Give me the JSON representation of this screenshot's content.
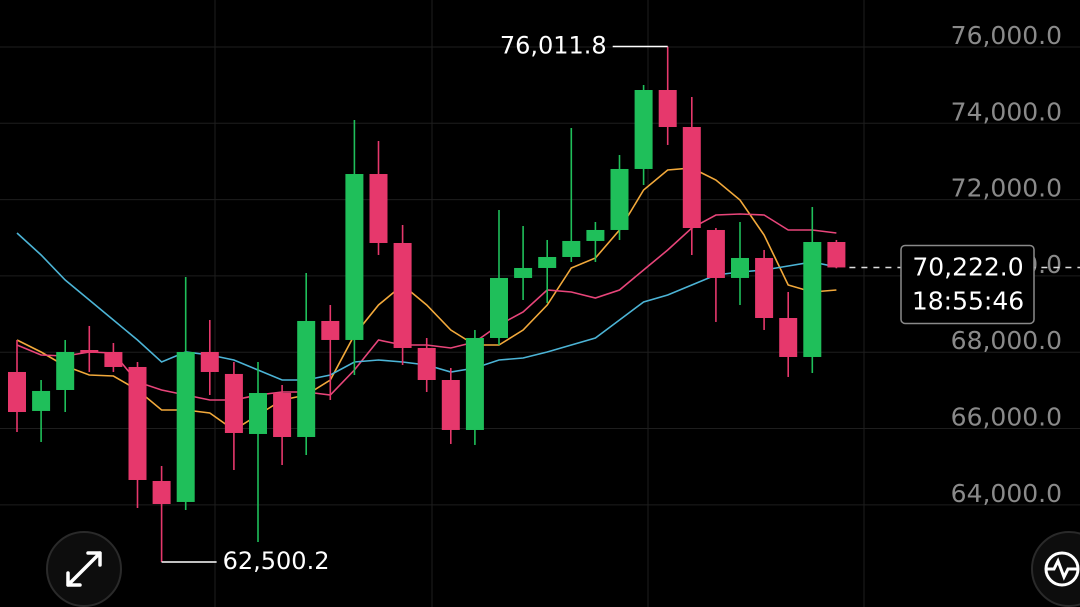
{
  "chart_data": {
    "type": "candlestick",
    "up_color": "#1fbf5a",
    "down_color": "#e6386c",
    "ylim": [
      61322,
      77232
    ],
    "yticks": [
      {
        "value": 64000,
        "label": "64,000.0"
      },
      {
        "value": 66000,
        "label": "66,000.0"
      },
      {
        "value": 68000,
        "label": "68,000.0"
      },
      {
        "value": 70000,
        "label": "70,000.0"
      },
      {
        "value": 72000,
        "label": "72,000.0"
      },
      {
        "value": 74000,
        "label": "74,000.0"
      },
      {
        "value": 76000,
        "label": "76,000.0"
      }
    ],
    "grid": true,
    "candles": [
      {
        "open": 67482,
        "high": 68321,
        "low": 65909,
        "close": 66433
      },
      {
        "open": 66460,
        "high": 67272,
        "low": 65647,
        "close": 66984
      },
      {
        "open": 67010,
        "high": 68321,
        "low": 66433,
        "close": 68006
      },
      {
        "open": 68058,
        "high": 68688,
        "low": 67482,
        "close": 67980
      },
      {
        "open": 68006,
        "high": 68242,
        "low": 67482,
        "close": 67613
      },
      {
        "open": 67613,
        "high": 67744,
        "low": 63917,
        "close": 64651
      },
      {
        "open": 64625,
        "high": 65018,
        "low": 62500.2,
        "close": 64022
      },
      {
        "open": 64075,
        "high": 69972,
        "low": 63865,
        "close": 68006
      },
      {
        "open": 68006,
        "high": 68845,
        "low": 66879,
        "close": 67482
      },
      {
        "open": 67430,
        "high": 67744,
        "low": 64913,
        "close": 65883
      },
      {
        "open": 65857,
        "high": 67744,
        "low": 63026,
        "close": 66931
      },
      {
        "open": 66931,
        "high": 67141,
        "low": 65044,
        "close": 65778
      },
      {
        "open": 65778,
        "high": 70077,
        "low": 65306,
        "close": 68819
      },
      {
        "open": 68819,
        "high": 69238,
        "low": 66748,
        "close": 68321
      },
      {
        "open": 68321,
        "high": 74087,
        "low": 67403,
        "close": 72671
      },
      {
        "open": 72671,
        "high": 73536,
        "low": 70549,
        "close": 70863
      },
      {
        "open": 70863,
        "high": 71335,
        "low": 67665,
        "close": 68111
      },
      {
        "open": 68111,
        "high": 68373,
        "low": 66958,
        "close": 67272
      },
      {
        "open": 67272,
        "high": 67587,
        "low": 65595,
        "close": 65962
      },
      {
        "open": 65962,
        "high": 68583,
        "low": 65569,
        "close": 68373
      },
      {
        "open": 68373,
        "high": 71728,
        "low": 68190,
        "close": 69946
      },
      {
        "open": 69946,
        "high": 71308,
        "low": 69369,
        "close": 70208
      },
      {
        "open": 70208,
        "high": 70942,
        "low": 69290,
        "close": 70496
      },
      {
        "open": 70496,
        "high": 73877,
        "low": 70365,
        "close": 70916
      },
      {
        "open": 70916,
        "high": 71413,
        "low": 70365,
        "close": 71204
      },
      {
        "open": 71204,
        "high": 73169,
        "low": 70942,
        "close": 72803
      },
      {
        "open": 72803,
        "high": 75004,
        "low": 72383,
        "close": 74873
      },
      {
        "open": 74873,
        "high": 76011.8,
        "low": 73432,
        "close": 73903
      },
      {
        "open": 73903,
        "high": 74690,
        "low": 70549,
        "close": 71256
      },
      {
        "open": 71204,
        "high": 71256,
        "low": 68793,
        "close": 69946
      },
      {
        "open": 69946,
        "high": 71413,
        "low": 69238,
        "close": 70470
      },
      {
        "open": 70470,
        "high": 70680,
        "low": 68583,
        "close": 68897
      },
      {
        "open": 68897,
        "high": 69579,
        "low": 67351,
        "close": 67875
      },
      {
        "open": 67875,
        "high": 71806,
        "low": 67456,
        "close": 70889
      },
      {
        "open": 70889,
        "high": 70942,
        "low": 70200,
        "close": 70222.0
      }
    ],
    "series": [
      {
        "color": "#f2a93b",
        "values": [
          68321,
          68006,
          67639,
          67403,
          67377,
          67010,
          66486,
          66486,
          66407,
          65962,
          66355,
          66748,
          66879,
          67272,
          68452,
          69238,
          69762,
          69238,
          68583,
          68190,
          68190,
          68583,
          69238,
          70208,
          70470,
          71204,
          72252,
          72776,
          72829,
          72514,
          71990,
          71073,
          69762,
          69579,
          69631
        ]
      },
      {
        "color": "#e8457a",
        "values": [
          68190,
          67928,
          67901,
          68006,
          67980,
          67220,
          67010,
          66879,
          66748,
          66748,
          66879,
          66958,
          66958,
          66879,
          67534,
          68321,
          68190,
          68190,
          68111,
          68268,
          68714,
          69054,
          69631,
          69579,
          69421,
          69631,
          70156,
          70680,
          71256,
          71597,
          71623,
          71597,
          71204,
          71204,
          71125
        ]
      },
      {
        "color": "#4cb4d6",
        "values": [
          71125,
          70549,
          69893,
          69369,
          68845,
          68321,
          67744,
          68006,
          67928,
          67796,
          67534,
          67272,
          67272,
          67403,
          67744,
          67796,
          67744,
          67665,
          67482,
          67587,
          67796,
          67849,
          68006,
          68190,
          68373,
          68845,
          69316,
          69500,
          69762,
          70024,
          70103,
          70156,
          70260,
          70365,
          70234
        ]
      }
    ],
    "max_label": "76,011.8",
    "min_label": "62,500.2",
    "last_price_label": "70,222.0",
    "countdown": "18:55:46"
  }
}
